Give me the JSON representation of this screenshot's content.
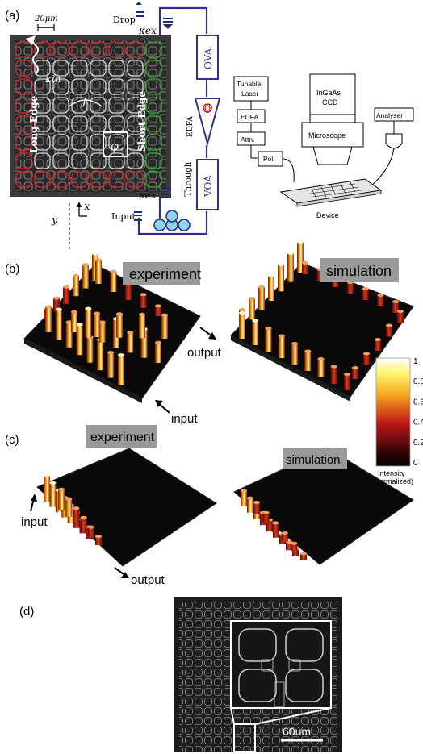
{
  "panel_labels": {
    "a": "(a)",
    "b": "(b)",
    "c": "(c)",
    "d": "(d)"
  },
  "panel_a": {
    "scale_bar": "20μm",
    "kappa_ex_top": "κex",
    "kappa_in": "κin",
    "kappa_ex_bottom": "κex",
    "coupling_j": "J",
    "flux_phi": "φ",
    "long_edge": "Long Edge",
    "short_edge": "Short Edge",
    "axis_x": "x",
    "axis_y": "y",
    "drop": "Drop",
    "input": "Input",
    "through": "Through",
    "ova": "OVA",
    "voa": "VOA",
    "edfa_vertical": "EDFA"
  },
  "setup": {
    "tunable_laser_1": "Tunable",
    "tunable_laser_2": "Laser",
    "edfa": "EDFA",
    "attn": "Attn.",
    "pol": "Pol.",
    "ingaas_1": "InGaAs",
    "ingaas_2": "CCD",
    "microscope": "Microscope",
    "analyser": "Analyser",
    "device": "Device"
  },
  "panel_b": {
    "experiment": "experiment",
    "simulation": "simulation",
    "output": "output",
    "input": "input"
  },
  "colorbar": {
    "ticks": [
      "1",
      "0.8",
      "0.6",
      "0.4",
      "0.2",
      "0"
    ],
    "label_1": "Intensity",
    "label_2": "(normalized)"
  },
  "panel_c": {
    "experiment": "experiment",
    "simulation": "simulation",
    "input": "input",
    "output": "output"
  },
  "panel_d": {
    "scale_bar": "60um"
  },
  "colors": {
    "accent_purple": "#3d2a8c",
    "long_edge_rings": "#d8282a",
    "short_edge_rings": "#3cab3c",
    "blue_component": "#1a2c7a",
    "annotation_box": "#888888"
  }
}
